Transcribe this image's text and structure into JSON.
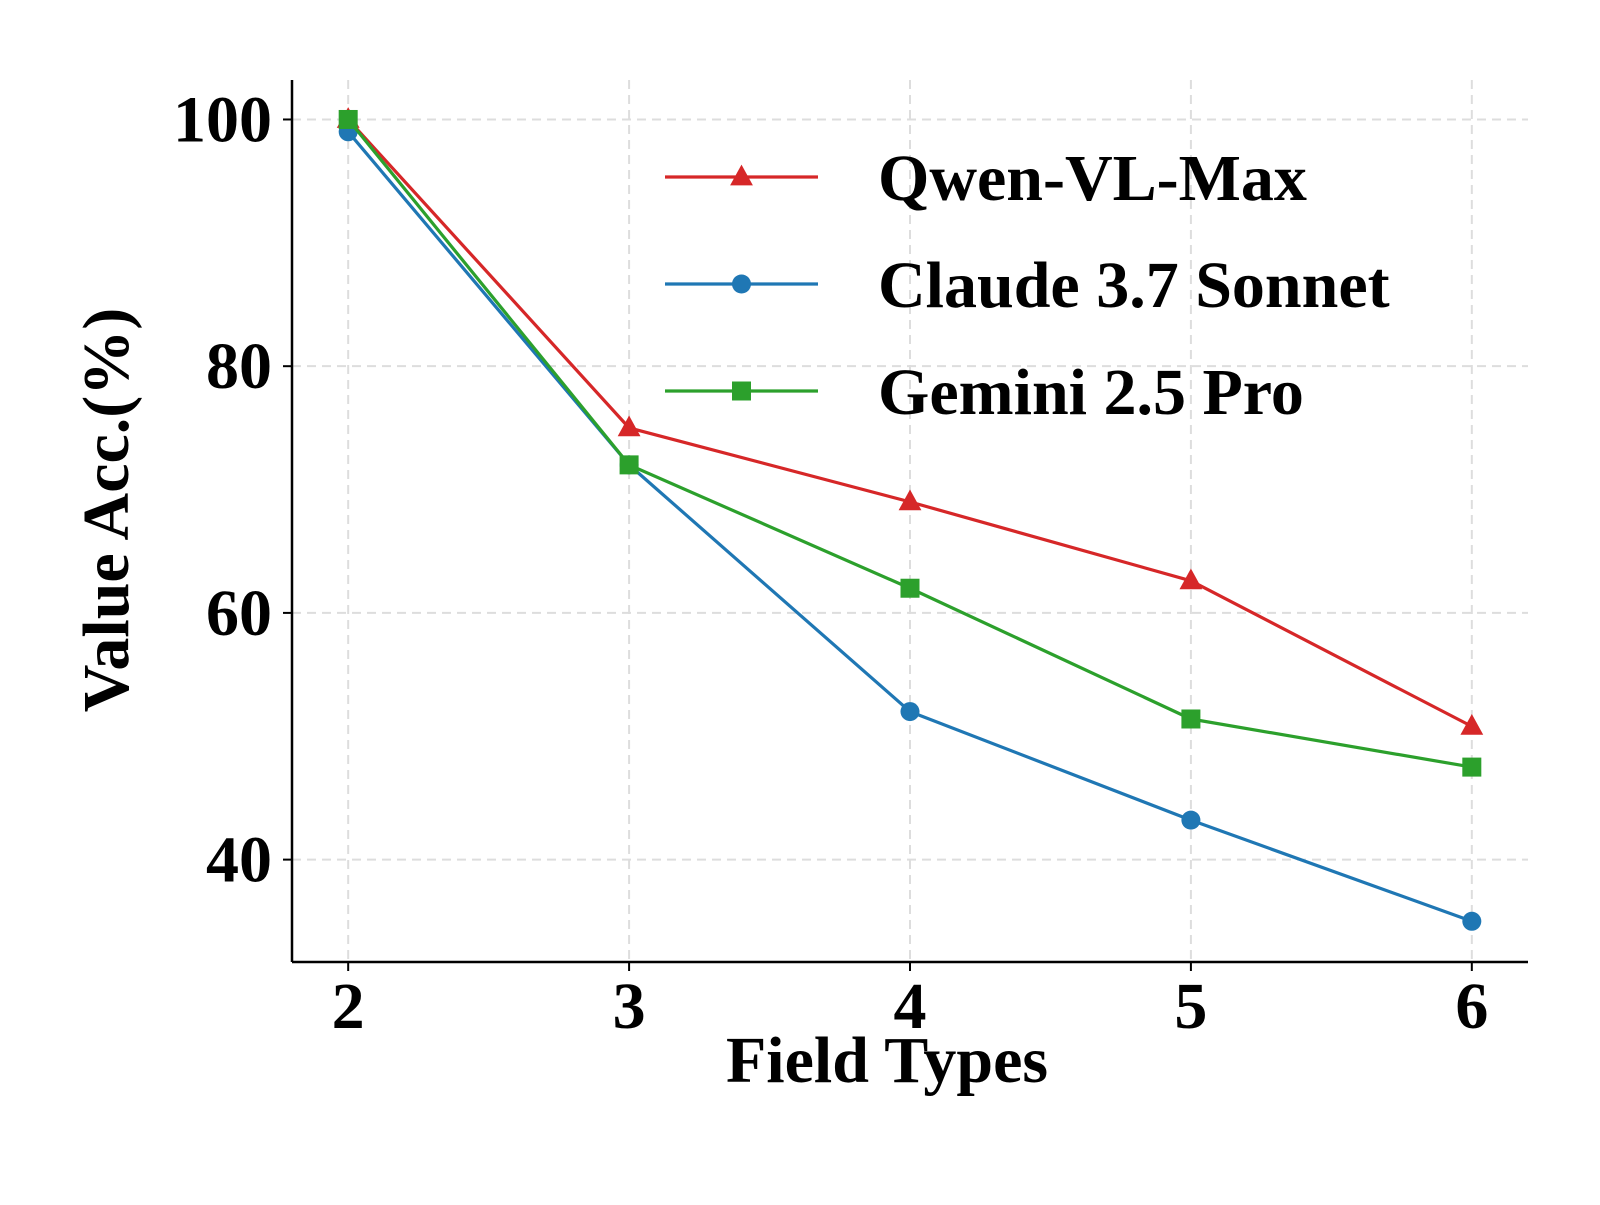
{
  "chart_data": {
    "type": "line",
    "title": "",
    "xlabel": "Field Types",
    "ylabel": "Value Acc.(%)",
    "x": [
      2,
      3,
      4,
      5,
      6
    ],
    "xlim": [
      1.8,
      6.2
    ],
    "ylim": [
      31.7,
      103.2
    ],
    "xticks": [
      "2",
      "3",
      "4",
      "5",
      "6"
    ],
    "yticks": [
      40,
      60,
      80,
      100
    ],
    "ytick_labels": [
      "40",
      "60",
      "80",
      "100"
    ],
    "grid": true,
    "legend_position": "top-right",
    "series": [
      {
        "name": "Qwen-VL-Max",
        "color": "#d62728",
        "marker": "triangle",
        "values": [
          100,
          75,
          69,
          62.6,
          50.8
        ]
      },
      {
        "name": "Claude 3.7 Sonnet",
        "color": "#1f77b4",
        "marker": "circle",
        "values": [
          99,
          72,
          52,
          43.2,
          35
        ]
      },
      {
        "name": "Gemini 2.5 Pro",
        "color": "#2ca02c",
        "marker": "square",
        "values": [
          100,
          72,
          62,
          51.4,
          47.5
        ]
      }
    ]
  }
}
